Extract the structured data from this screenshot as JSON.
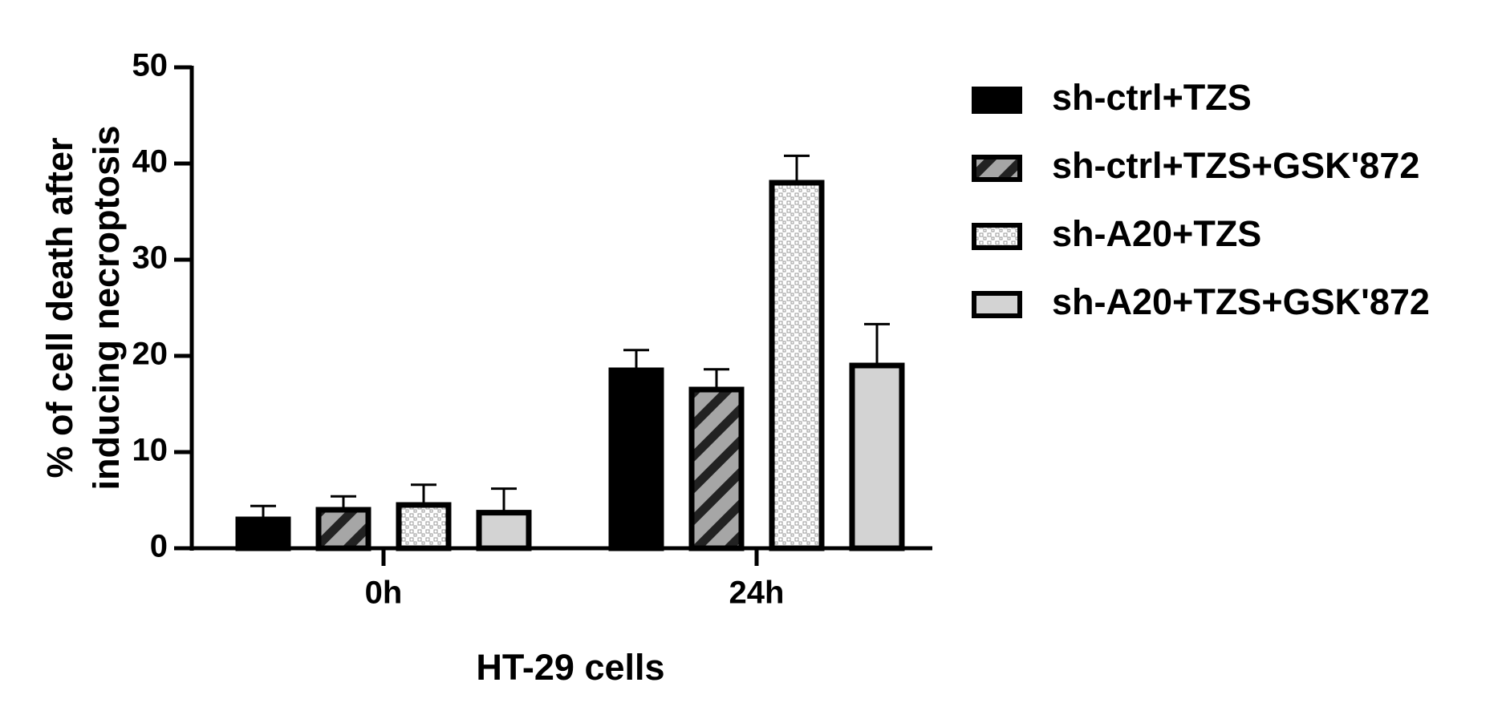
{
  "chart_data": {
    "type": "bar",
    "xlabel": "HT-29 cells",
    "ylabel": [
      "% of cell death after",
      "inducing necroptosis"
    ],
    "categories": [
      "0h",
      "24h"
    ],
    "series": [
      {
        "name": "sh-ctrl+TZS",
        "color": "#000000",
        "pattern": "solid",
        "values": [
          3,
          18.5
        ],
        "errors": [
          1.4,
          2.1
        ]
      },
      {
        "name": "sh-ctrl+TZS+GSK'872",
        "color": "#a6a6a6",
        "pattern": "diagonal",
        "values": [
          4,
          16.5
        ],
        "errors": [
          1.4,
          2.1
        ]
      },
      {
        "name": "sh-A20+TZS",
        "color": "#ffffff",
        "pattern": "dots",
        "values": [
          4.5,
          38
        ],
        "errors": [
          2.1,
          2.8
        ]
      },
      {
        "name": "sh-A20+TZS+GSK'872",
        "color": "#d3d3d3",
        "pattern": "solid",
        "values": [
          3.7,
          19
        ],
        "errors": [
          2.5,
          4.3
        ]
      }
    ],
    "ylim": [
      0,
      50
    ],
    "yticks": [
      0,
      10,
      20,
      30,
      40,
      50
    ],
    "legend": "right"
  }
}
